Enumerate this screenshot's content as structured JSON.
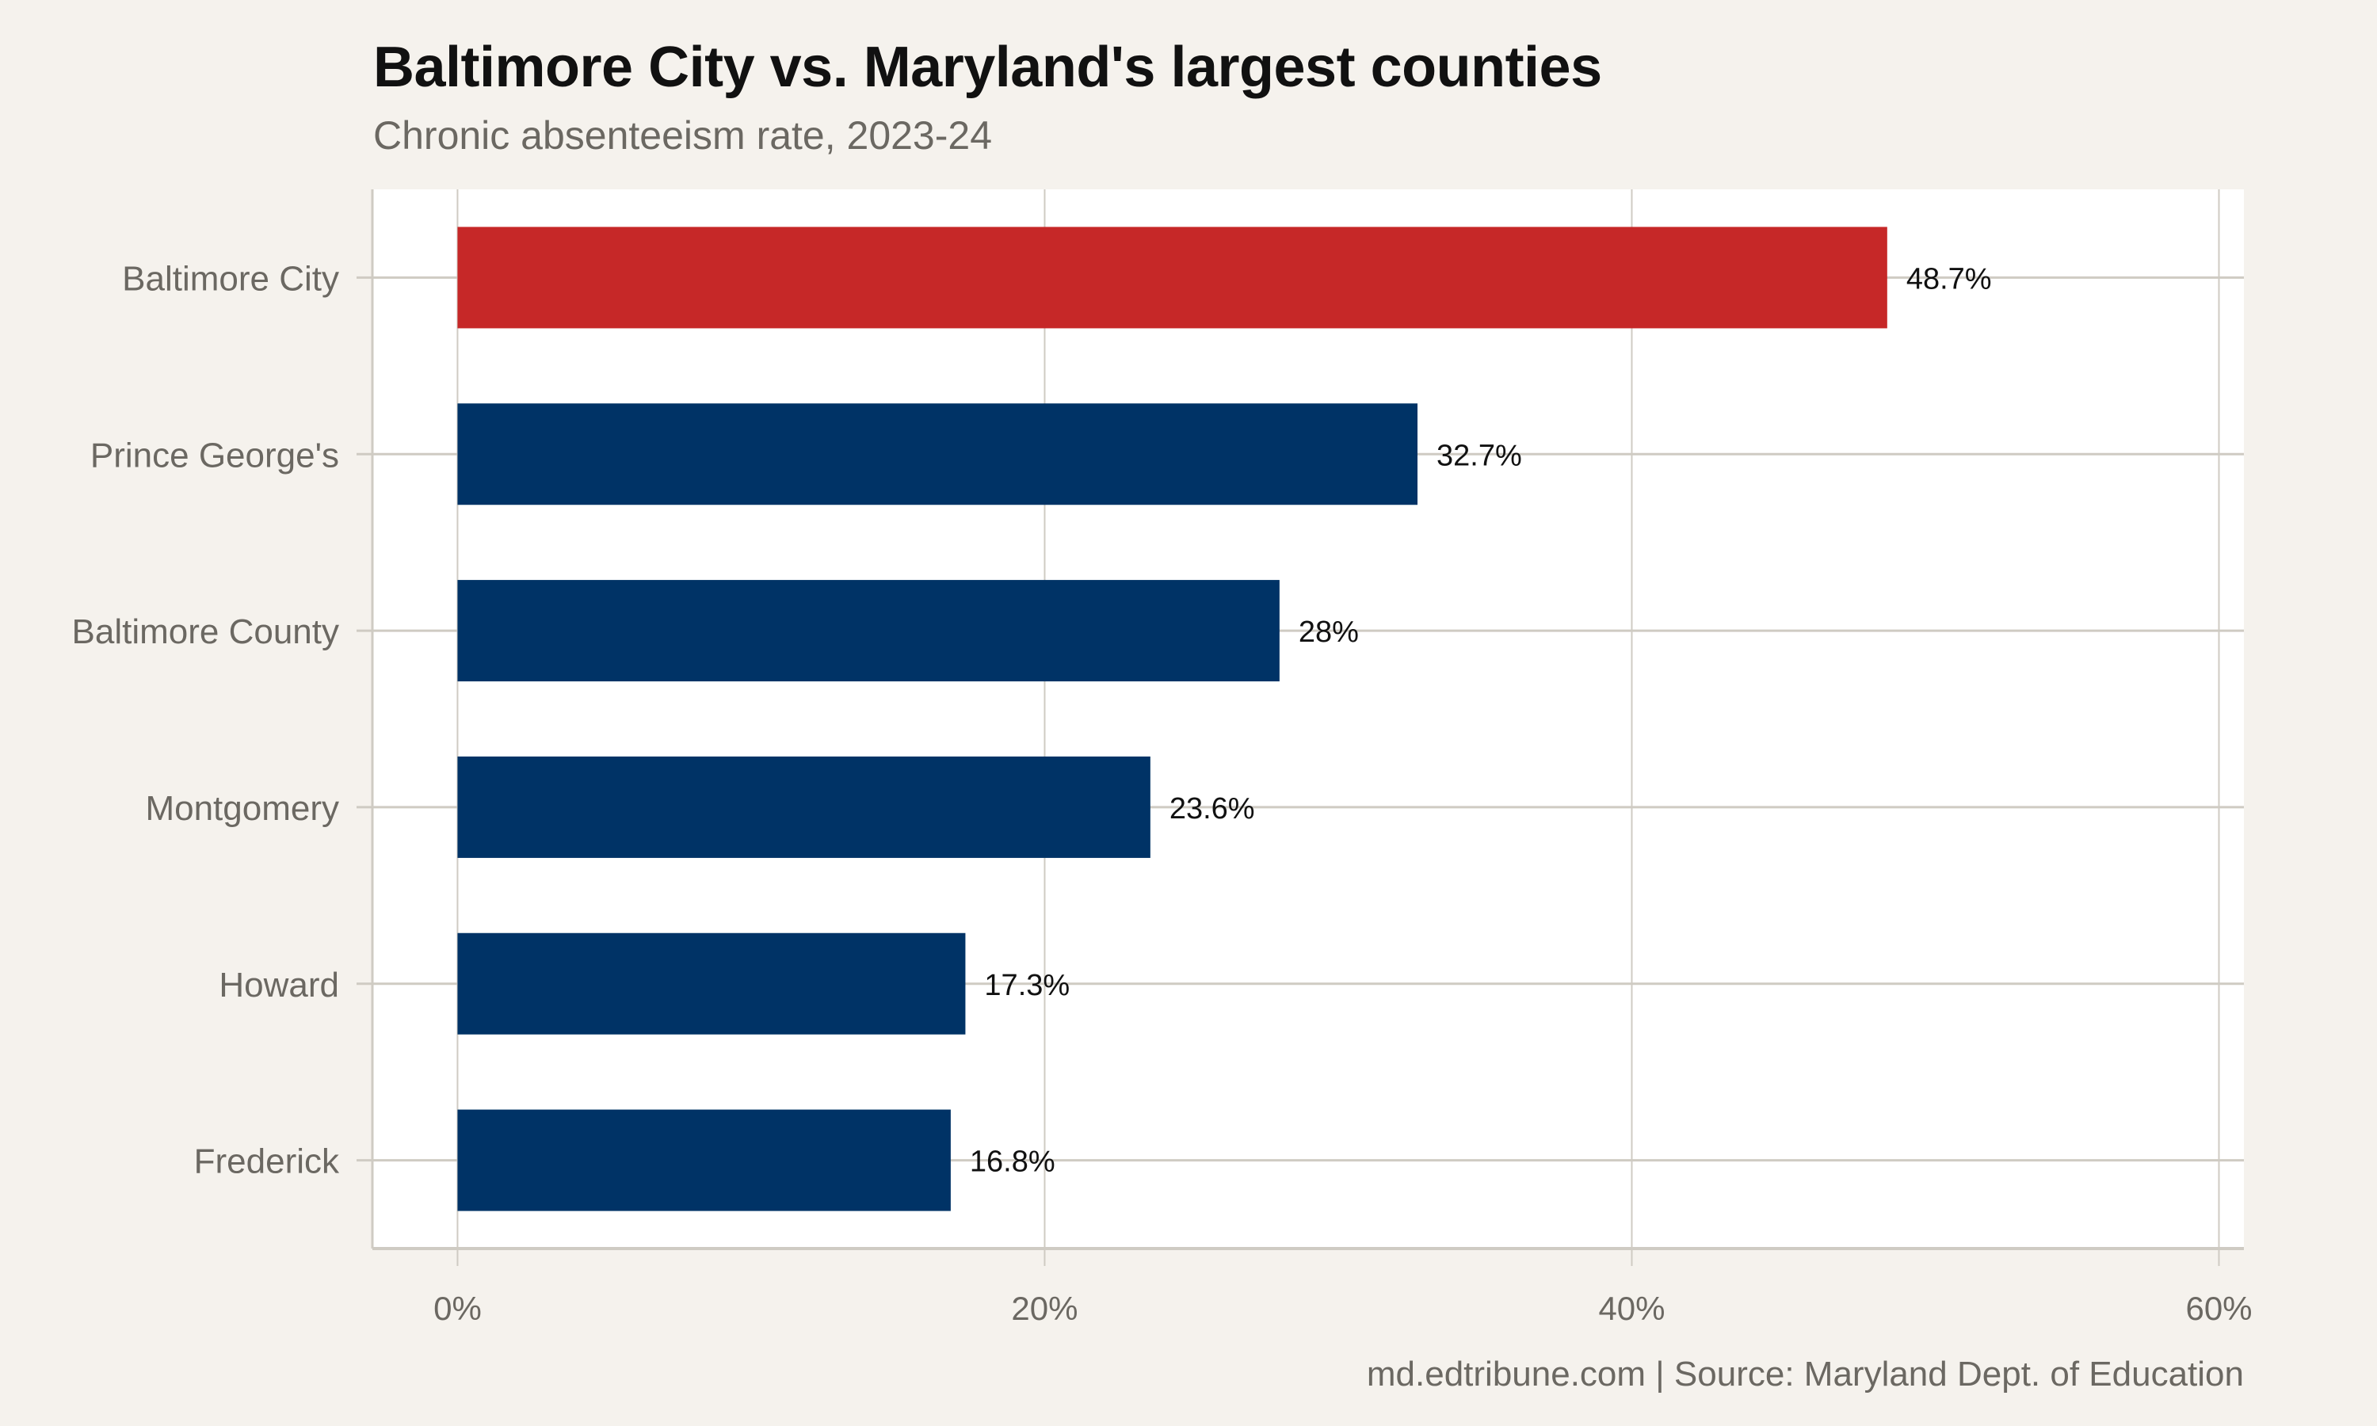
{
  "chart_data": {
    "type": "bar",
    "orientation": "horizontal",
    "title": "Baltimore City vs. Maryland's largest counties",
    "subtitle": "Chronic absenteeism rate, 2023-24",
    "caption": "md.edtribune.com | Source: Maryland Dept. of Education",
    "categories": [
      "Baltimore City",
      "Prince George's",
      "Baltimore County",
      "Montgomery",
      "Howard",
      "Frederick"
    ],
    "values": [
      48.7,
      32.7,
      28,
      23.6,
      17.3,
      16.8
    ],
    "data_labels": [
      "48.7%",
      "32.7%",
      "28%",
      "23.6%",
      "17.3%",
      "16.8%"
    ],
    "colors": [
      "#c62828",
      "#003366",
      "#003366",
      "#003366",
      "#003366",
      "#003366"
    ],
    "xticks": [
      0,
      20,
      40,
      60
    ],
    "xtick_labels": [
      "0%",
      "20%",
      "40%",
      "60%"
    ],
    "xlim": [
      -2.9,
      60.85
    ],
    "xlabel": "",
    "ylabel": "",
    "grid": true,
    "legend": "none",
    "background": "#f5f2ed",
    "panel_background": "#ffffff",
    "grid_color": "#cfcbc3"
  }
}
